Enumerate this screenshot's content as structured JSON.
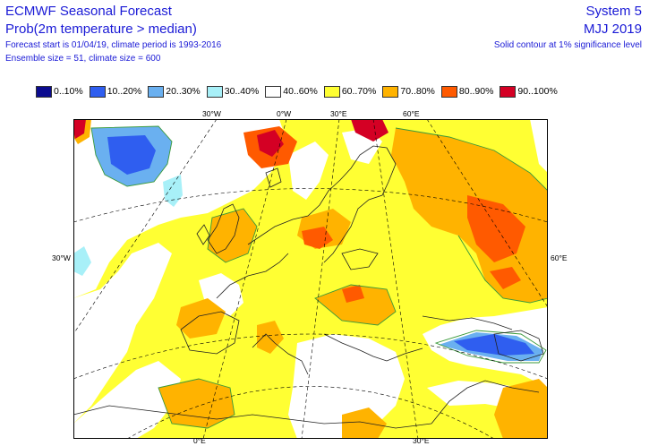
{
  "header": {
    "title": "ECMWF Seasonal Forecast",
    "subtitle": "Prob(2m temperature > median)",
    "forecast_info": "Forecast start is 01/04/19, climate period is 1993-2016",
    "ensemble_info": "Ensemble size = 51, climate size = 600",
    "system": "System 5",
    "period": "MJJ 2019",
    "significance_note": "Solid contour at 1% significance level"
  },
  "legend": [
    {
      "label": "0..10%",
      "color": "#0b0b8f"
    },
    {
      "label": "10..20%",
      "color": "#2f5ef0"
    },
    {
      "label": "20..30%",
      "color": "#6ab0f0"
    },
    {
      "label": "30..40%",
      "color": "#a8f0f8"
    },
    {
      "label": "40..60%",
      "color": "#ffffff"
    },
    {
      "label": "60..70%",
      "color": "#ffff33"
    },
    {
      "label": "70..80%",
      "color": "#ffb300"
    },
    {
      "label": "80..90%",
      "color": "#ff5a00"
    },
    {
      "label": "90..100%",
      "color": "#d40024"
    }
  ],
  "ticks": {
    "top": [
      "30°W",
      "0°W",
      "30°E",
      "60°E"
    ],
    "left": "30°W",
    "right": "60°E",
    "bottom": [
      "0°E",
      "30°E"
    ]
  },
  "map": {
    "region": "Europe",
    "colors": {
      "frame": "#000000",
      "coast": "#222222",
      "grid": "#000000",
      "sig_contour": "#3a9a3a"
    }
  }
}
